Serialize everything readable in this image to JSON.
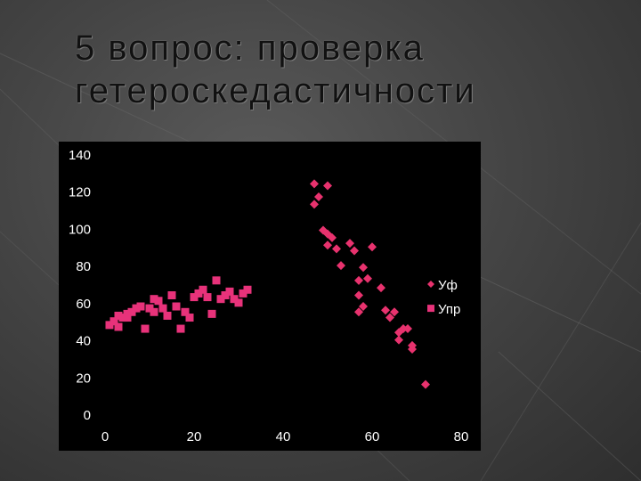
{
  "slide": {
    "title_line1": "5 вопрос: проверка",
    "title_line2": "гетероскедастичности"
  },
  "colors": {
    "series_yf": "#e8326e",
    "series_ypr": "#e8327a",
    "chart_bg": "#000000",
    "axis_text": "#ffffff"
  },
  "chart_data": {
    "type": "scatter",
    "title": "",
    "xlabel": "",
    "ylabel": "",
    "xlim": [
      0,
      80
    ],
    "ylim": [
      0,
      140
    ],
    "x_ticks": [
      "0",
      "20",
      "40",
      "60",
      "80"
    ],
    "y_ticks": [
      "0",
      "20",
      "40",
      "60",
      "80",
      "100",
      "120",
      "140"
    ],
    "grid": false,
    "legend_position": "right",
    "series": [
      {
        "name": "Уф",
        "marker": "diamond",
        "points": [
          [
            47,
            124
          ],
          [
            50,
            123
          ],
          [
            48,
            117
          ],
          [
            47,
            113
          ],
          [
            49,
            99
          ],
          [
            50,
            97
          ],
          [
            51,
            95
          ],
          [
            50,
            91
          ],
          [
            52,
            89
          ],
          [
            55,
            92
          ],
          [
            56,
            88
          ],
          [
            60,
            90
          ],
          [
            53,
            80
          ],
          [
            58,
            79
          ],
          [
            57,
            72
          ],
          [
            59,
            73
          ],
          [
            62,
            68
          ],
          [
            57,
            64
          ],
          [
            58,
            58
          ],
          [
            57,
            55
          ],
          [
            63,
            56
          ],
          [
            65,
            55
          ],
          [
            64,
            52
          ],
          [
            67,
            46
          ],
          [
            68,
            46
          ],
          [
            66,
            44
          ],
          [
            66,
            40
          ],
          [
            69,
            37
          ],
          [
            69,
            35
          ],
          [
            72,
            16
          ]
        ]
      },
      {
        "name": "Упр",
        "marker": "square",
        "points": [
          [
            1,
            48
          ],
          [
            2,
            50
          ],
          [
            3,
            47
          ],
          [
            3,
            53
          ],
          [
            4,
            52
          ],
          [
            5,
            52
          ],
          [
            5,
            54
          ],
          [
            6,
            55
          ],
          [
            7,
            57
          ],
          [
            8,
            58
          ],
          [
            9,
            46
          ],
          [
            10,
            57
          ],
          [
            11,
            62
          ],
          [
            11,
            55
          ],
          [
            12,
            61
          ],
          [
            13,
            57
          ],
          [
            14,
            53
          ],
          [
            15,
            64
          ],
          [
            16,
            58
          ],
          [
            17,
            46
          ],
          [
            18,
            55
          ],
          [
            19,
            52
          ],
          [
            20,
            63
          ],
          [
            21,
            65
          ],
          [
            22,
            67
          ],
          [
            23,
            63
          ],
          [
            24,
            54
          ],
          [
            25,
            72
          ],
          [
            26,
            62
          ],
          [
            27,
            64
          ],
          [
            28,
            66
          ],
          [
            29,
            62
          ],
          [
            30,
            60
          ],
          [
            31,
            65
          ],
          [
            32,
            67
          ]
        ]
      }
    ]
  }
}
